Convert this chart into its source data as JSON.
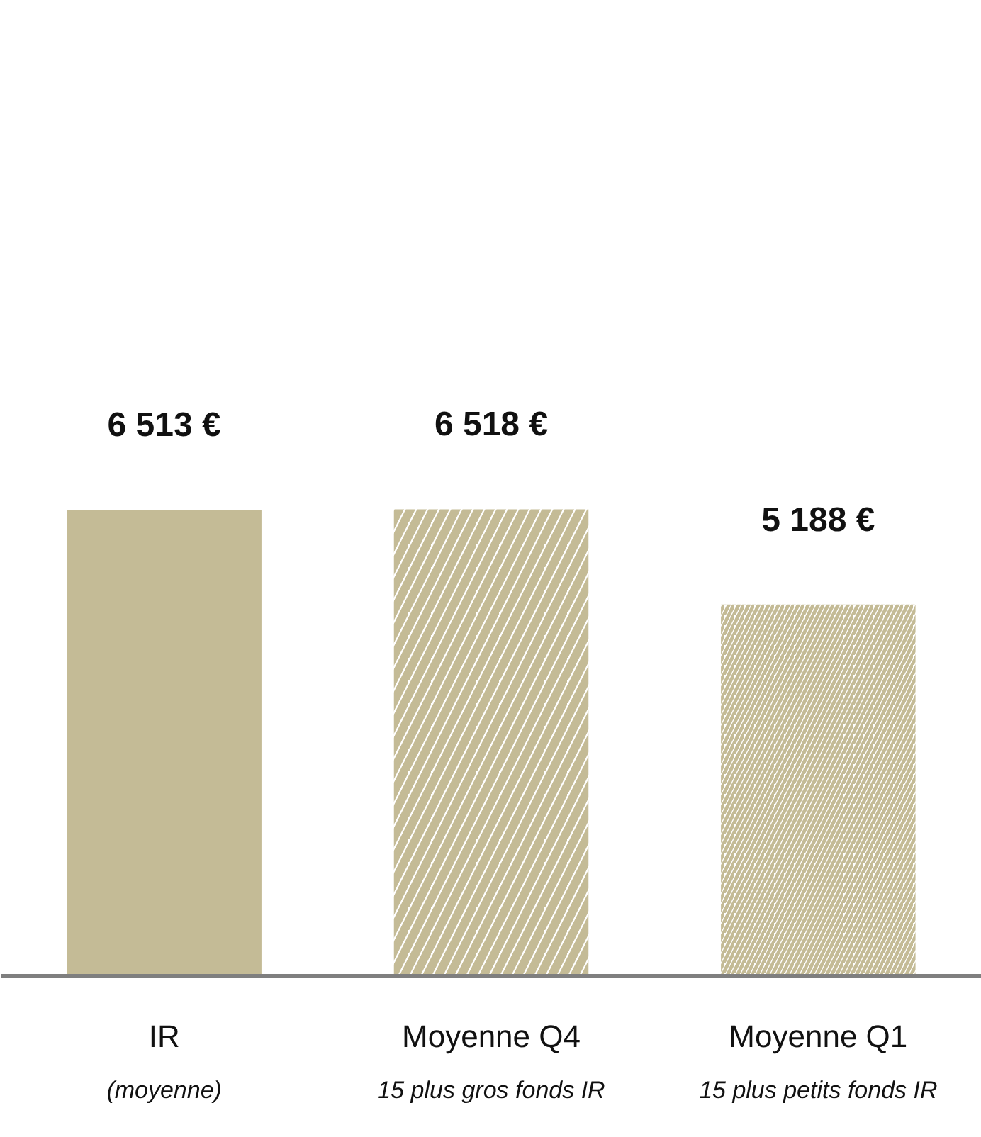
{
  "chart_data": {
    "type": "bar",
    "categories": [
      "IR\n(moyenne)",
      "Moyenne Q4\n15 plus gros fonds IR",
      "Moyenne Q1\n15 plus petits fonds IR"
    ],
    "values": [
      6513,
      6518,
      5188
    ],
    "colors": [
      "#c4bb96",
      "#c4bb96",
      "#c4bb96"
    ],
    "value_labels": [
      "6 513 €",
      "6 518 €",
      "5 188 €"
    ]
  }
}
